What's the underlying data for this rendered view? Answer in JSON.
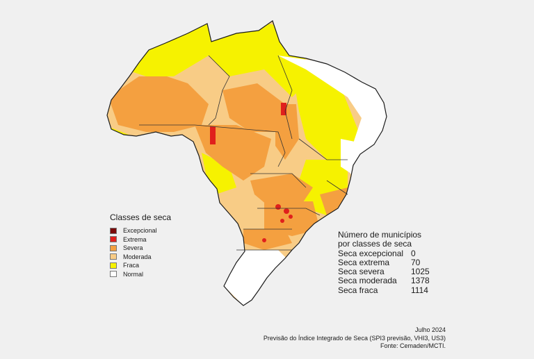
{
  "legend": {
    "title": "Classes de seca",
    "items": [
      {
        "label": "Excepcional",
        "color": "#7a0a0a"
      },
      {
        "label": "Extrema",
        "color": "#e0201c"
      },
      {
        "label": "Severa",
        "color": "#f4a040"
      },
      {
        "label": "Moderada",
        "color": "#f8cc86"
      },
      {
        "label": "Fraca",
        "color": "#f6f200"
      },
      {
        "label": "Normal",
        "color": "#ffffff"
      }
    ]
  },
  "counts": {
    "title_line1": "Número de municípios",
    "title_line2": "por classes de seca",
    "rows": [
      {
        "label": "Seca excepcional",
        "value": "0"
      },
      {
        "label": "Seca extrema",
        "value": "70"
      },
      {
        "label": "Seca severa",
        "value": "1025"
      },
      {
        "label": "Seca moderada",
        "value": "1378"
      },
      {
        "label": "Seca fraca",
        "value": "1114"
      }
    ]
  },
  "source": {
    "date": "Julho 2024",
    "description": "Previsão do Índice Integrado de Seca (SPI3 previsão, VHI3, US3)",
    "credit": "Fonte: Cemaden/MCTI."
  }
}
